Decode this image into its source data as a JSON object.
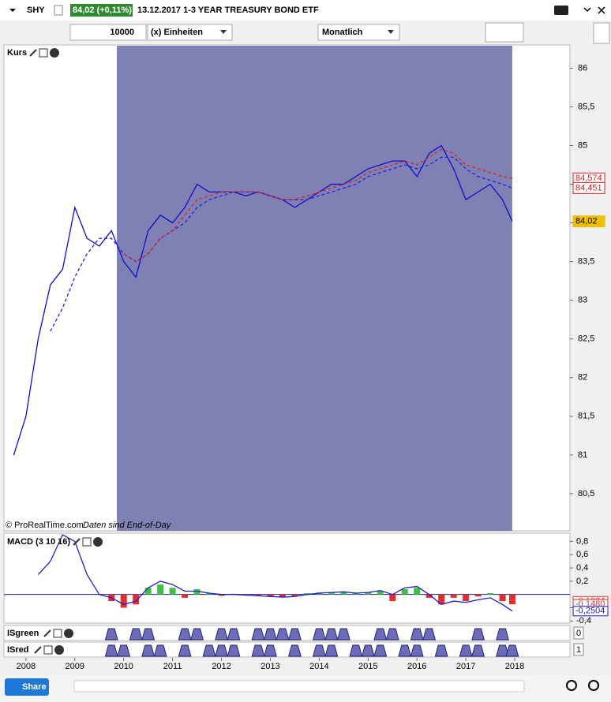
{
  "header": {
    "symbol": "SHY",
    "quote": "84,02 (+0,11%)",
    "description": "13.12.2017 1-3 YEAR TREASURY BOND ETF"
  },
  "toolbar": {
    "quantity": "10000",
    "units": "(x) Einheiten",
    "period": "Monatlich"
  },
  "footer": {
    "share": "Share"
  },
  "chart_data": [
    {
      "type": "line",
      "title": "Kurs",
      "credit": "© ProRealTime.com",
      "note": "Daten sind End-of-Day",
      "x": [
        2007.75,
        2008,
        2008.25,
        2008.5,
        2008.75,
        2009,
        2009.25,
        2009.5,
        2009.75,
        2010,
        2010.25,
        2010.5,
        2010.75,
        2011,
        2011.25,
        2011.5,
        2011.75,
        2012,
        2012.25,
        2012.5,
        2012.75,
        2013,
        2013.25,
        2013.5,
        2013.75,
        2014,
        2014.25,
        2014.5,
        2014.75,
        2015,
        2015.25,
        2015.5,
        2015.75,
        2016,
        2016.25,
        2016.5,
        2016.75,
        2017,
        2017.25,
        2017.5,
        2017.75,
        2017.95
      ],
      "series": [
        {
          "color": "#1010c8",
          "dash": false,
          "values": [
            81.0,
            81.5,
            82.5,
            83.2,
            83.4,
            84.2,
            83.8,
            83.7,
            83.9,
            83.5,
            83.3,
            83.9,
            84.1,
            84.0,
            84.2,
            84.5,
            84.4,
            84.4,
            84.4,
            84.35,
            84.4,
            84.35,
            84.3,
            84.2,
            84.3,
            84.4,
            84.5,
            84.5,
            84.6,
            84.7,
            84.75,
            84.8,
            84.8,
            84.6,
            84.9,
            85.0,
            84.7,
            84.3,
            84.4,
            84.5,
            84.3,
            84.02
          ]
        },
        {
          "color": "#2020e0",
          "dash": true,
          "values": [
            null,
            null,
            null,
            82.6,
            82.9,
            83.3,
            83.6,
            83.8,
            83.8,
            83.6,
            83.5,
            83.6,
            83.8,
            83.9,
            84.0,
            84.2,
            84.3,
            84.35,
            84.4,
            84.4,
            84.4,
            84.35,
            84.3,
            84.3,
            84.3,
            84.35,
            84.4,
            84.45,
            84.5,
            84.6,
            84.65,
            84.7,
            84.75,
            84.7,
            84.75,
            84.85,
            84.85,
            84.7,
            84.6,
            84.55,
            84.5,
            84.45
          ]
        },
        {
          "color": "#e02020",
          "dash": true,
          "values": [
            null,
            null,
            null,
            null,
            null,
            null,
            null,
            null,
            null,
            83.6,
            83.5,
            83.6,
            83.8,
            83.9,
            84.1,
            84.3,
            84.35,
            84.4,
            84.4,
            84.4,
            84.4,
            84.35,
            84.3,
            84.3,
            84.35,
            84.4,
            84.45,
            84.5,
            84.55,
            84.65,
            84.7,
            84.75,
            84.8,
            84.75,
            84.85,
            84.95,
            84.9,
            84.75,
            84.7,
            84.65,
            84.6,
            84.574
          ]
        }
      ],
      "price_labels": [
        {
          "value": 84.574,
          "label": "84,574",
          "color": "#e02020"
        },
        {
          "value": 84.451,
          "label": "84,451",
          "color": "#e02020"
        },
        {
          "value": 84.02,
          "label": "84,02",
          "color": "#f0c000"
        }
      ],
      "highlight": [
        2009.86,
        2017.95
      ],
      "xlim": [
        2007.55,
        2019.13
      ],
      "xticks": [
        2008,
        2009,
        2010,
        2011,
        2012,
        2013,
        2014,
        2015,
        2016,
        2017,
        2018
      ],
      "ylim": [
        80.02,
        86.3
      ],
      "yticks": [
        {
          "value": 80.5,
          "label": "80,5"
        },
        81,
        {
          "value": 81.5,
          "label": "81,5"
        },
        82,
        {
          "value": 82.5,
          "label": "82,5"
        },
        83,
        {
          "value": 83.5,
          "label": "83,5"
        },
        84,
        {
          "value": 84.5,
          "label": "84,5"
        },
        85,
        {
          "value": 85.5,
          "label": "85,5"
        },
        86
      ]
    },
    {
      "type": "macd",
      "title": "MACD (3 10 16)",
      "histogram": [
        null,
        null,
        null,
        null,
        null,
        null,
        null,
        null,
        -0.1,
        -0.2,
        -0.15,
        0.1,
        0.15,
        0.1,
        -0.05,
        0.08,
        0.02,
        -0.02,
        0.01,
        -0.01,
        -0.02,
        -0.03,
        -0.04,
        -0.03,
        0.02,
        0.03,
        0.03,
        0.04,
        0.02,
        0.03,
        0.05,
        -0.1,
        0.08,
        0.1,
        -0.05,
        -0.15,
        -0.05,
        -0.1,
        -0.03,
        0.02,
        -0.1,
        -0.148
      ],
      "line": [
        null,
        null,
        0.3,
        0.5,
        0.9,
        0.8,
        0.3,
        0.0,
        -0.05,
        -0.15,
        -0.1,
        0.1,
        0.2,
        0.15,
        0.05,
        0.05,
        0.02,
        0.0,
        0.0,
        -0.01,
        -0.02,
        -0.03,
        -0.04,
        -0.03,
        0.0,
        0.02,
        0.03,
        0.04,
        0.02,
        0.03,
        0.06,
        0.0,
        0.1,
        0.12,
        0.0,
        -0.15,
        -0.1,
        -0.12,
        -0.08,
        -0.05,
        -0.15,
        -0.25
      ],
      "line_color": "#2020c8",
      "positive_color": "#40c040",
      "negative_color": "#e03030",
      "value_labels": [
        {
          "value": -0.1024,
          "label": "-0,1024",
          "color": "#e03030"
        },
        {
          "value": -0.148,
          "label": "-0,1480",
          "color": "#e03030"
        },
        {
          "value": -0.2504,
          "label": "-0,2504",
          "color": "#2020c8"
        }
      ],
      "ylim": [
        -0.42,
        0.9
      ],
      "yticks": [
        {
          "value": -0.4,
          "label": "-0,4"
        },
        {
          "value": -0.2,
          "label": "-0,2"
        },
        {
          "value": 0.2,
          "label": "0,2"
        },
        {
          "value": 0.4,
          "label": "0,4"
        },
        {
          "value": 0.6,
          "label": "0,6"
        },
        {
          "value": 0.8,
          "label": "0,8"
        }
      ]
    },
    {
      "type": "signal",
      "title": "ISgreen",
      "current": 0,
      "values": [
        0,
        0,
        0,
        0,
        0,
        0,
        0,
        0,
        1,
        0,
        1,
        1,
        0,
        0,
        1,
        1,
        0,
        1,
        1,
        0,
        1,
        1,
        1,
        1,
        0,
        1,
        1,
        1,
        0,
        0,
        1,
        1,
        0,
        1,
        1,
        0,
        0,
        0,
        1,
        0,
        1,
        0
      ]
    },
    {
      "type": "signal",
      "title": "ISred",
      "current": 1,
      "values": [
        0,
        0,
        0,
        0,
        0,
        0,
        0,
        0,
        1,
        1,
        0,
        1,
        1,
        0,
        1,
        0,
        1,
        1,
        1,
        0,
        1,
        1,
        0,
        1,
        0,
        1,
        1,
        0,
        1,
        1,
        1,
        0,
        1,
        1,
        0,
        1,
        0,
        1,
        1,
        0,
        1,
        1
      ]
    }
  ]
}
